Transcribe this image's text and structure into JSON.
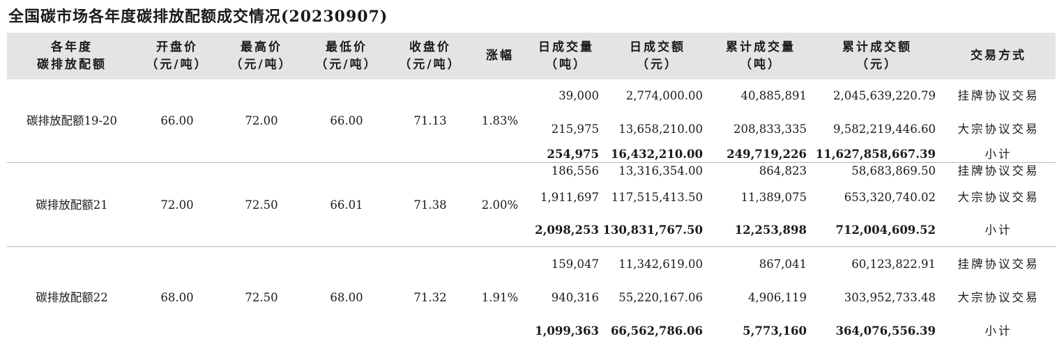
{
  "title": "全国碳市场各年度碳排放配额成交情况(20230907)",
  "headers": [
    {
      "l1": "各年度",
      "l2": "碳排放配额"
    },
    {
      "l1": "开盘价",
      "l2": "（元/吨）"
    },
    {
      "l1": "最高价",
      "l2": "（元/吨）"
    },
    {
      "l1": "最低价",
      "l2": "（元/吨）"
    },
    {
      "l1": "收盘价",
      "l2": "（元/吨）"
    },
    {
      "l1": "涨幅",
      "l2": ""
    },
    {
      "l1": "日成交量",
      "l2": "（吨）"
    },
    {
      "l1": "日成交额",
      "l2": "（元）"
    },
    {
      "l1": "累计成交量",
      "l2": "（吨）"
    },
    {
      "l1": "累计成交额",
      "l2": "（元）"
    },
    {
      "l1": "交易方式",
      "l2": ""
    }
  ],
  "groups": [
    {
      "name": "碳排放配额19-20",
      "open": "66.00",
      "high": "72.00",
      "low": "66.00",
      "close": "71.13",
      "change": "1.83%",
      "rows": [
        {
          "daily_vol": "39,000",
          "daily_amt": "2,774,000.00",
          "cum_vol": "40,885,891",
          "cum_amt": "2,045,639,220.79",
          "mode": "挂牌协议交易"
        },
        {
          "daily_vol": "215,975",
          "daily_amt": "13,658,210.00",
          "cum_vol": "208,833,335",
          "cum_amt": "9,582,219,446.60",
          "mode": "大宗协议交易"
        },
        {
          "daily_vol": "254,975",
          "daily_amt": "16,432,210.00",
          "cum_vol": "249,719,226",
          "cum_amt": "11,627,858,667.39",
          "mode": "小计"
        }
      ]
    },
    {
      "name": "碳排放配额21",
      "open": "72.00",
      "high": "72.50",
      "low": "66.01",
      "close": "71.38",
      "change": "2.00%",
      "rows": [
        {
          "daily_vol": "186,556",
          "daily_amt": "13,316,354.00",
          "cum_vol": "864,823",
          "cum_amt": "58,683,869.50",
          "mode": "挂牌协议交易"
        },
        {
          "daily_vol": "1,911,697",
          "daily_amt": "117,515,413.50",
          "cum_vol": "11,389,075",
          "cum_amt": "653,320,740.02",
          "mode": "大宗协议交易"
        },
        {
          "daily_vol": "2,098,253",
          "daily_amt": "130,831,767.50",
          "cum_vol": "12,253,898",
          "cum_amt": "712,004,609.52",
          "mode": "小计"
        }
      ]
    },
    {
      "name": "碳排放配额22",
      "open": "68.00",
      "high": "72.50",
      "low": "68.00",
      "close": "71.32",
      "change": "1.91%",
      "rows": [
        {
          "daily_vol": "159,047",
          "daily_amt": "11,342,619.00",
          "cum_vol": "867,041",
          "cum_amt": "60,123,822.91",
          "mode": "挂牌协议交易"
        },
        {
          "daily_vol": "940,316",
          "daily_amt": "55,220,167.06",
          "cum_vol": "4,906,119",
          "cum_amt": "303,952,733.48",
          "mode": "大宗协议交易"
        },
        {
          "daily_vol": "1,099,363",
          "daily_amt": "66,562,786.06",
          "cum_vol": "5,773,160",
          "cum_amt": "364,076,556.39",
          "mode": "小计"
        }
      ]
    }
  ]
}
